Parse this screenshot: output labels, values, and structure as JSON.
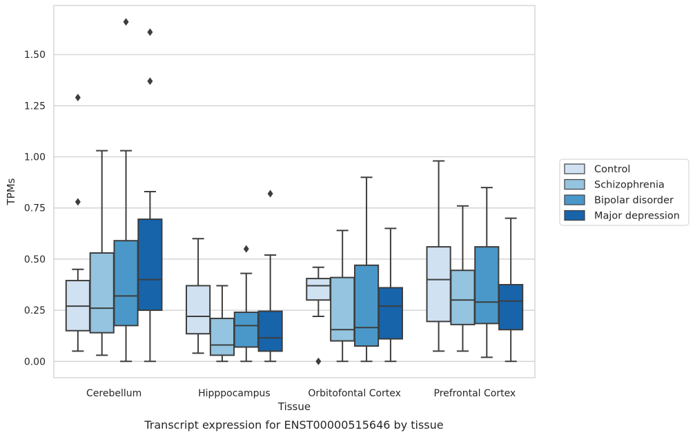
{
  "chart_data": {
    "type": "box",
    "caption": "Transcript expression for ENST00000515646 by tissue",
    "xlabel": "Tissue",
    "ylabel": "TPMs",
    "ylim": [
      -0.08,
      1.74
    ],
    "yticks": [
      0.0,
      0.25,
      0.5,
      0.75,
      1.0,
      1.25,
      1.5
    ],
    "ytick_labels": [
      "0.00",
      "0.25",
      "0.50",
      "0.75",
      "1.00",
      "1.25",
      "1.50"
    ],
    "grid": "horizontal",
    "legend_position": "right",
    "categories": [
      "Cerebellum",
      "Hipppocampus",
      "Orbitofontal Cortex",
      "Prefrontal Cortex"
    ],
    "series": [
      {
        "name": "Control",
        "color": "#d0e1f2",
        "boxes": [
          {
            "whislo": 0.05,
            "q1": 0.15,
            "med": 0.27,
            "q3": 0.395,
            "whishi": 0.45,
            "fliers": [
              0.78,
              1.29
            ]
          },
          {
            "whislo": 0.04,
            "q1": 0.135,
            "med": 0.22,
            "q3": 0.37,
            "whishi": 0.6,
            "fliers": []
          },
          {
            "whislo": 0.22,
            "q1": 0.3,
            "med": 0.37,
            "q3": 0.405,
            "whishi": 0.46,
            "fliers": [
              0.0
            ]
          },
          {
            "whislo": 0.05,
            "q1": 0.195,
            "med": 0.4,
            "q3": 0.56,
            "whishi": 0.98,
            "fliers": []
          }
        ]
      },
      {
        "name": "Schizophrenia",
        "color": "#94c4df",
        "boxes": [
          {
            "whislo": 0.03,
            "q1": 0.14,
            "med": 0.26,
            "q3": 0.53,
            "whishi": 1.03,
            "fliers": []
          },
          {
            "whislo": 0.0,
            "q1": 0.03,
            "med": 0.08,
            "q3": 0.21,
            "whishi": 0.37,
            "fliers": []
          },
          {
            "whislo": 0.0,
            "q1": 0.1,
            "med": 0.155,
            "q3": 0.41,
            "whishi": 0.64,
            "fliers": []
          },
          {
            "whislo": 0.05,
            "q1": 0.18,
            "med": 0.3,
            "q3": 0.445,
            "whishi": 0.76,
            "fliers": []
          }
        ]
      },
      {
        "name": "Bipolar disorder",
        "color": "#4a98c9",
        "boxes": [
          {
            "whislo": 0.0,
            "q1": 0.175,
            "med": 0.32,
            "q3": 0.59,
            "whishi": 1.03,
            "fliers": [
              1.66
            ]
          },
          {
            "whislo": 0.0,
            "q1": 0.07,
            "med": 0.175,
            "q3": 0.24,
            "whishi": 0.43,
            "fliers": [
              0.55
            ]
          },
          {
            "whislo": 0.0,
            "q1": 0.075,
            "med": 0.165,
            "q3": 0.47,
            "whishi": 0.9,
            "fliers": []
          },
          {
            "whislo": 0.02,
            "q1": 0.185,
            "med": 0.29,
            "q3": 0.56,
            "whishi": 0.85,
            "fliers": []
          }
        ]
      },
      {
        "name": "Major depression",
        "color": "#1764ab",
        "boxes": [
          {
            "whislo": 0.0,
            "q1": 0.25,
            "med": 0.4,
            "q3": 0.695,
            "whishi": 0.83,
            "fliers": [
              1.37,
              1.61
            ]
          },
          {
            "whislo": 0.0,
            "q1": 0.05,
            "med": 0.115,
            "q3": 0.245,
            "whishi": 0.52,
            "fliers": [
              0.82
            ]
          },
          {
            "whislo": 0.0,
            "q1": 0.11,
            "med": 0.27,
            "q3": 0.36,
            "whishi": 0.65,
            "fliers": []
          },
          {
            "whislo": 0.0,
            "q1": 0.155,
            "med": 0.295,
            "q3": 0.375,
            "whishi": 0.7,
            "fliers": []
          }
        ]
      }
    ]
  }
}
